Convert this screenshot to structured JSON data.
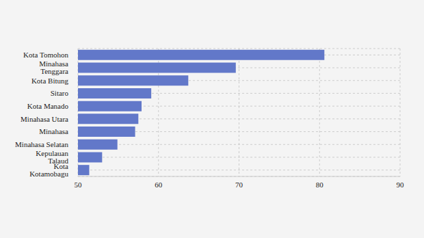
{
  "chart_data": {
    "type": "bar",
    "orientation": "horizontal",
    "categories": [
      "Kota Tomohon",
      "Minahasa Tenggara",
      "Kota Bitung",
      "Sitaro",
      "Kota Manado",
      "Minahasa Utara",
      "Minahasa",
      "Minahasa Selatan",
      "Kepulauan Talaud",
      "Kota Kotamobagu"
    ],
    "values": [
      80.6,
      69.6,
      63.7,
      59.1,
      57.9,
      57.5,
      57.1,
      54.9,
      53.0,
      51.4
    ],
    "color": "#6278c9",
    "xlim": [
      50,
      90
    ],
    "xticks": [
      50,
      60,
      70,
      80,
      90
    ],
    "grid": true
  }
}
